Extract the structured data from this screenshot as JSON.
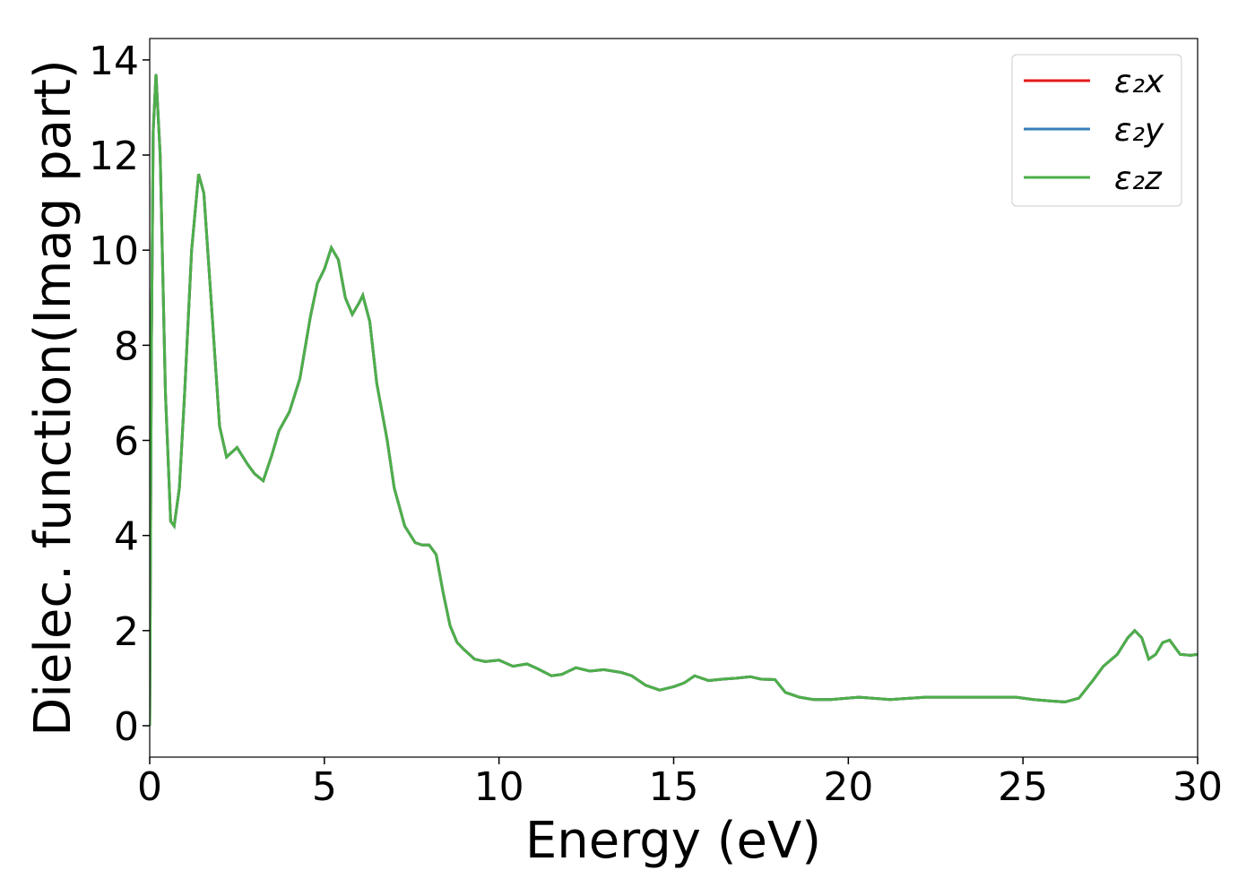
{
  "chart_data": {
    "type": "line",
    "xlabel": "Energy (eV)",
    "ylabel": "Dielec. function(Imag part)",
    "x": [
      0,
      0.05,
      0.1,
      0.18,
      0.3,
      0.45,
      0.6,
      0.7,
      0.85,
      1.0,
      1.2,
      1.4,
      1.55,
      1.8,
      2.0,
      2.2,
      2.5,
      2.8,
      3.0,
      3.25,
      3.5,
      3.7,
      4.0,
      4.3,
      4.6,
      4.8,
      5.0,
      5.2,
      5.4,
      5.6,
      5.8,
      6.0,
      6.1,
      6.3,
      6.5,
      6.8,
      7.0,
      7.3,
      7.6,
      7.8,
      8.0,
      8.2,
      8.4,
      8.6,
      8.8,
      9.0,
      9.3,
      9.6,
      10.0,
      10.4,
      10.8,
      11.1,
      11.5,
      11.8,
      12.2,
      12.6,
      13.0,
      13.5,
      13.8,
      14.2,
      14.6,
      15.0,
      15.3,
      15.6,
      16.0,
      16.4,
      16.8,
      17.2,
      17.5,
      17.9,
      18.2,
      18.6,
      19.0,
      19.5,
      20.3,
      21.2,
      22.2,
      23.0,
      24.0,
      24.8,
      25.3,
      25.8,
      26.2,
      26.6,
      27.0,
      27.3,
      27.7,
      28.0,
      28.2,
      28.4,
      28.6,
      28.8,
      29.0,
      29.2,
      29.5,
      29.8,
      30.0
    ],
    "series": [
      {
        "name": "ε₂x",
        "color": "#e41a1c",
        "values": [
          0,
          8,
          12.5,
          13.7,
          12,
          7,
          4.3,
          4.2,
          5,
          7,
          10,
          11.6,
          11.2,
          8.5,
          6.3,
          5.65,
          5.85,
          5.5,
          5.3,
          5.15,
          5.7,
          6.2,
          6.6,
          7.3,
          8.6,
          9.3,
          9.6,
          10.05,
          9.8,
          9.0,
          8.65,
          8.9,
          9.05,
          8.5,
          7.2,
          6.0,
          5.0,
          4.2,
          3.85,
          3.8,
          3.8,
          3.6,
          2.8,
          2.1,
          1.75,
          1.6,
          1.4,
          1.35,
          1.38,
          1.25,
          1.3,
          1.2,
          1.05,
          1.08,
          1.22,
          1.15,
          1.18,
          1.12,
          1.05,
          0.85,
          0.75,
          0.82,
          0.9,
          1.05,
          0.95,
          0.98,
          1.0,
          1.03,
          0.98,
          0.97,
          0.7,
          0.6,
          0.55,
          0.55,
          0.6,
          0.55,
          0.6,
          0.6,
          0.6,
          0.6,
          0.55,
          0.52,
          0.5,
          0.58,
          0.95,
          1.25,
          1.5,
          1.85,
          2.0,
          1.85,
          1.4,
          1.5,
          1.75,
          1.8,
          1.5,
          1.48,
          1.5
        ]
      },
      {
        "name": "ε₂y",
        "color": "#377eb8",
        "values": [
          0,
          8,
          12.5,
          13.7,
          12,
          7,
          4.3,
          4.2,
          5,
          7,
          10,
          11.6,
          11.2,
          8.5,
          6.3,
          5.65,
          5.85,
          5.5,
          5.3,
          5.15,
          5.7,
          6.2,
          6.6,
          7.3,
          8.6,
          9.3,
          9.6,
          10.05,
          9.8,
          9.0,
          8.65,
          8.9,
          9.05,
          8.5,
          7.2,
          6.0,
          5.0,
          4.2,
          3.85,
          3.8,
          3.8,
          3.6,
          2.8,
          2.1,
          1.75,
          1.6,
          1.4,
          1.35,
          1.38,
          1.25,
          1.3,
          1.2,
          1.05,
          1.08,
          1.22,
          1.15,
          1.18,
          1.12,
          1.05,
          0.85,
          0.75,
          0.82,
          0.9,
          1.05,
          0.95,
          0.98,
          1.0,
          1.03,
          0.98,
          0.97,
          0.7,
          0.6,
          0.55,
          0.55,
          0.6,
          0.55,
          0.6,
          0.6,
          0.6,
          0.6,
          0.55,
          0.52,
          0.5,
          0.58,
          0.95,
          1.25,
          1.5,
          1.85,
          2.0,
          1.85,
          1.4,
          1.5,
          1.75,
          1.8,
          1.5,
          1.48,
          1.5
        ]
      },
      {
        "name": "ε₂z",
        "color": "#4daf4a",
        "values": [
          0,
          8,
          12.5,
          13.7,
          12,
          7,
          4.3,
          4.2,
          5,
          7,
          10,
          11.6,
          11.2,
          8.5,
          6.3,
          5.65,
          5.85,
          5.5,
          5.3,
          5.15,
          5.7,
          6.2,
          6.6,
          7.3,
          8.6,
          9.3,
          9.6,
          10.05,
          9.8,
          9.0,
          8.65,
          8.9,
          9.05,
          8.5,
          7.2,
          6.0,
          5.0,
          4.2,
          3.85,
          3.8,
          3.8,
          3.6,
          2.8,
          2.1,
          1.75,
          1.6,
          1.4,
          1.35,
          1.38,
          1.25,
          1.3,
          1.2,
          1.05,
          1.08,
          1.22,
          1.15,
          1.18,
          1.12,
          1.05,
          0.85,
          0.75,
          0.82,
          0.9,
          1.05,
          0.95,
          0.98,
          1.0,
          1.03,
          0.98,
          0.97,
          0.7,
          0.6,
          0.55,
          0.55,
          0.6,
          0.55,
          0.6,
          0.6,
          0.6,
          0.6,
          0.55,
          0.52,
          0.5,
          0.58,
          0.95,
          1.25,
          1.5,
          1.85,
          2.0,
          1.85,
          1.4,
          1.5,
          1.75,
          1.8,
          1.5,
          1.48,
          1.5
        ]
      }
    ],
    "xlim": [
      0,
      30
    ],
    "xticks": [
      0,
      5,
      10,
      15,
      20,
      25,
      30
    ],
    "ylim": [
      -0.66,
      14.45
    ],
    "yticks": [
      0,
      2,
      4,
      6,
      8,
      10,
      12,
      14
    ],
    "grid": false,
    "legend": "upper right"
  }
}
